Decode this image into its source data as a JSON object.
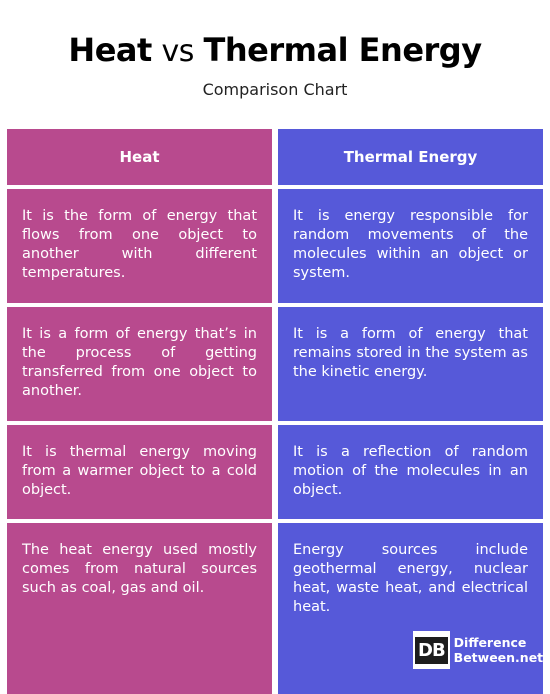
{
  "header": {
    "title_part1": "Heat",
    "title_vs": "vs",
    "title_part2": "Thermal Energy",
    "subtitle": "Comparison Chart"
  },
  "table": {
    "columns": [
      "Heat",
      "Thermal Energy"
    ],
    "rows": [
      [
        "It is the form of energy that flows from one object to another with different temperatures.",
        "It is energy responsible for random movements of the molecules within an object or system."
      ],
      [
        "It is a form of energy that’s in the process of getting transferred from one object to another.",
        "It is a form of energy that remains stored in the system as the kinetic energy."
      ],
      [
        "It is thermal energy moving from a warmer object to a cold object.",
        "It is a reflection of random motion of the molecules in an object."
      ],
      [
        "The heat energy used mostly comes from natural sources such as coal, gas and oil.",
        "Energy sources include geothermal energy, nuclear heat, waste heat, and electrical heat."
      ]
    ]
  },
  "logo": {
    "mark": "DB",
    "line1": "Difference",
    "line2": "Between.net"
  },
  "colors": {
    "heat_column": "#b84a8e",
    "thermal_column": "#5659d9"
  }
}
